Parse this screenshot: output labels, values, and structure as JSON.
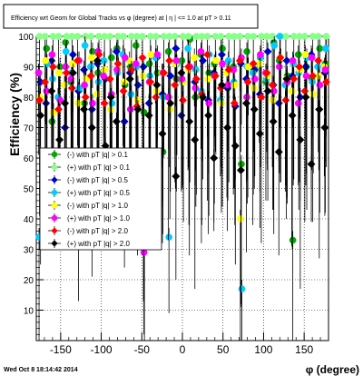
{
  "chart_data": {
    "type": "scatter",
    "title": "Efficiency wrt Geom for Global Tracks vs φ (degree) at | η | <= 1.0 at pT > 0.11",
    "xlabel": "φ (degree)",
    "ylabel": "Efficiency (%)",
    "xlim": [
      -180,
      180
    ],
    "ylim": [
      0,
      100
    ],
    "x_ticks": [
      -150,
      -100,
      -50,
      0,
      50,
      100,
      150
    ],
    "y_ticks": [
      10,
      20,
      30,
      40,
      50,
      60,
      70,
      80,
      90,
      100
    ],
    "grid": true,
    "legend_position": "middle-left",
    "footer": "Wed Oct  8 18:14:42 2014",
    "phi_bins": [
      -176,
      -168,
      -160,
      -152,
      -144,
      -136,
      -128,
      -120,
      -112,
      -104,
      -96,
      -88,
      -80,
      -72,
      -64,
      -56,
      -48,
      -40,
      -32,
      -24,
      -16,
      -8,
      0,
      8,
      16,
      24,
      32,
      40,
      48,
      56,
      64,
      72,
      80,
      88,
      96,
      104,
      112,
      120,
      128,
      136,
      144,
      152,
      160,
      168,
      176
    ],
    "series": [
      {
        "name": "(-) with pT |q| > 0.1",
        "color": "#00aa00",
        "marker": "circle",
        "values": [
          88,
          96,
          72,
          90,
          98,
          85,
          92,
          78,
          95,
          88,
          60,
          93,
          96,
          84,
          90,
          97,
          75,
          91,
          88,
          62,
          95,
          86,
          92,
          99,
          80,
          94,
          88,
          91,
          96,
          83,
          90,
          58,
          95,
          89,
          93,
          85,
          98,
          92,
          87,
          33,
          94,
          90,
          86,
          96,
          91
        ]
      },
      {
        "name": "(+) with pT |q| > 0.1",
        "color": "#88ff88",
        "marker": "circle",
        "values": [
          100,
          100,
          100,
          100,
          100,
          100,
          100,
          100,
          100,
          100,
          100,
          100,
          100,
          100,
          100,
          100,
          100,
          100,
          100,
          100,
          100,
          100,
          100,
          100,
          100,
          100,
          100,
          100,
          100,
          100,
          100,
          100,
          100,
          100,
          100,
          100,
          100,
          100,
          100,
          100,
          100,
          100,
          100,
          100,
          100
        ]
      },
      {
        "name": "(-) with pT |q| > 0.5",
        "color": "#0000cc",
        "marker": "diamond",
        "values": [
          85,
          78,
          92,
          88,
          70,
          94,
          82,
          89,
          76,
          91,
          86,
          80,
          95,
          72,
          88,
          84,
          90,
          78,
          93,
          81,
          87,
          96,
          74,
          89,
          85,
          92,
          79,
          88,
          94,
          83,
          77,
          91,
          86,
          89,
          81,
          95,
          84,
          78,
          92,
          87,
          80,
          90,
          94,
          76,
          88
        ]
      },
      {
        "name": "(+) with pT |q| > 0.5",
        "color": "#00ccff",
        "marker": "circle",
        "values": [
          34,
          91,
          86,
          80,
          95,
          88,
          83,
          97,
          90,
          85,
          92,
          78,
          88,
          94,
          81,
          90,
          34,
          87,
          93,
          80,
          34,
          91,
          85,
          96,
          89,
          82,
          94,
          87,
          79,
          92,
          85,
          17,
          90,
          88,
          93,
          86,
          97,
          100,
          84,
          91,
          88,
          93,
          85,
          90,
          96
        ]
      },
      {
        "name": "(-) with pT |q| > 1.0",
        "color": "#ffff00",
        "marker": "circle",
        "values": [
          80,
          92,
          75,
          88,
          84,
          91,
          78,
          86,
          93,
          81,
          89,
          76,
          90,
          85,
          92,
          79,
          87,
          94,
          82,
          88,
          76,
          91,
          85,
          89,
          93,
          80,
          86,
          92,
          78,
          88,
          84,
          40,
          90,
          83,
          91,
          87,
          79,
          93,
          86,
          82,
          89,
          94,
          81,
          87,
          90
        ]
      },
      {
        "name": "(+) with pT |q| > 1.0",
        "color": "#ff00ff",
        "marker": "circle",
        "values": [
          88,
          82,
          94,
          79,
          90,
          86,
          92,
          84,
          78,
          95,
          87,
          81,
          89,
          93,
          76,
          91,
          29,
          85,
          94,
          88,
          80,
          92,
          86,
          90,
          83,
          95,
          78,
          87,
          91,
          84,
          89,
          93,
          80,
          86,
          94,
          88,
          82,
          90,
          85,
          92,
          78,
          87,
          93,
          84,
          89
        ]
      },
      {
        "name": "(-) with pT |q| > 2.0",
        "color": "#ff0000",
        "marker": "diamond",
        "values": [
          79,
          85,
          90,
          76,
          88,
          83,
          92,
          80,
          87,
          94,
          78,
          86,
          91,
          82,
          89,
          77,
          93,
          85,
          80,
          88,
          92,
          84,
          79,
          90,
          86,
          81,
          94,
          87,
          83,
          89,
          78,
          92,
          85,
          91,
          80,
          88,
          84,
          93,
          79,
          86,
          90,
          82,
          87,
          92,
          85
        ]
      },
      {
        "name": "(+) with pT |q| > 2.0",
        "color": "#000000",
        "marker": "diamond",
        "values": [
          74,
          60,
          82,
          66,
          78,
          88,
          52,
          76,
          70,
          92,
          64,
          80,
          72,
          58,
          86,
          76,
          62,
          74,
          84,
          68,
          78,
          54,
          88,
          72,
          66,
          80,
          74,
          60,
          84,
          70,
          64,
          56,
          78,
          76,
          68,
          82,
          72,
          62,
          86,
          74,
          66,
          80,
          58,
          76,
          70
        ]
      }
    ]
  }
}
